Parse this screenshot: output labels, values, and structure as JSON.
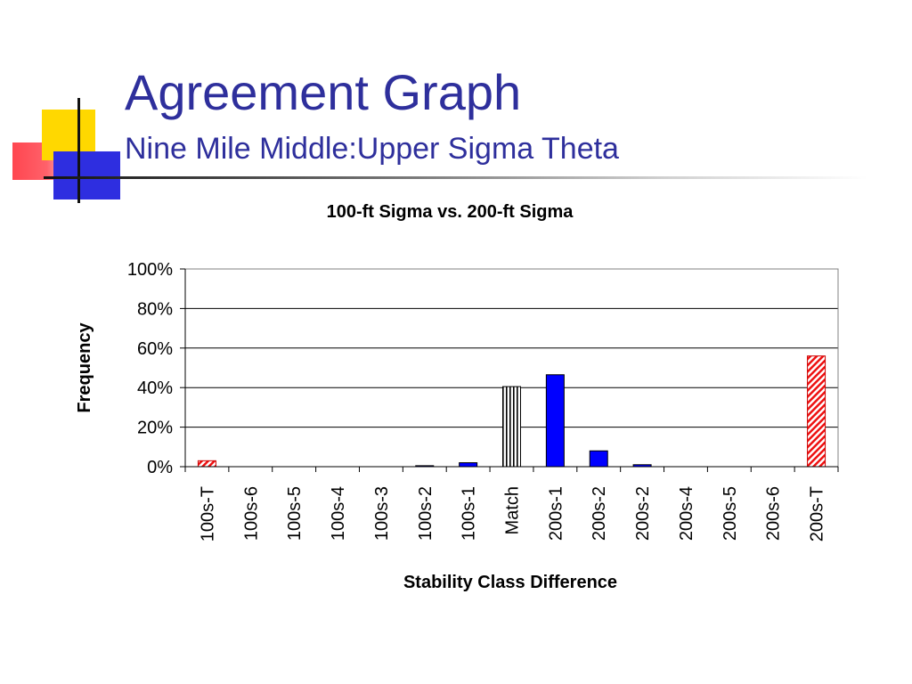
{
  "slide": {
    "title": "Agreement Graph",
    "subtitle": "Nine Mile Middle:Upper Sigma Theta"
  },
  "colors": {
    "title": "#2e2f9c",
    "bar_blue": "#0000ff",
    "bar_red_hatch": "#ee1111",
    "bar_match": "#ffffff",
    "deco_yellow": "#ffd800",
    "deco_blue": "#2e2ee0",
    "deco_red": "#ff3c46"
  },
  "chart_data": {
    "type": "bar",
    "title": "100-ft Sigma vs. 200-ft Sigma",
    "xlabel": "Stability Class Difference",
    "ylabel": "Frequency",
    "ylim": [
      0,
      1
    ],
    "yticks": [
      "0%",
      "20%",
      "40%",
      "60%",
      "80%",
      "100%"
    ],
    "grid": true,
    "legend": "none",
    "categories": [
      "100s-T",
      "100s-6",
      "100s-5",
      "100s-4",
      "100s-3",
      "100s-2",
      "100s-1",
      "Match",
      "200s-1",
      "200s-2",
      "200s-2",
      "200s-4",
      "200s-5",
      "200s-6",
      "200s-T"
    ],
    "values": [
      0.03,
      0,
      0,
      0,
      0,
      0.005,
      0.02,
      0.405,
      0.465,
      0.08,
      0.01,
      0,
      0,
      0,
      0.56
    ],
    "fills": [
      "hatch-red",
      "blue",
      "blue",
      "blue",
      "blue",
      "blue",
      "blue",
      "vstripe",
      "blue",
      "blue",
      "blue",
      "blue",
      "blue",
      "blue",
      "hatch-red"
    ]
  }
}
